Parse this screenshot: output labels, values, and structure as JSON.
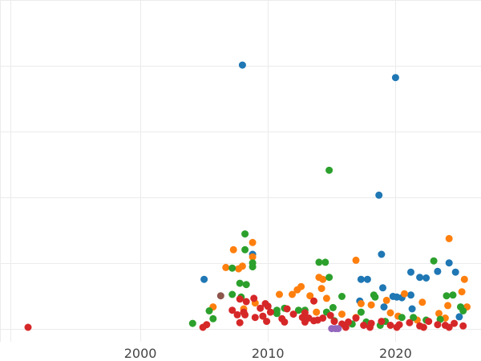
{
  "chart_data": {
    "type": "scatter",
    "title": "",
    "xlabel": "",
    "ylabel": "",
    "x_ticks": [
      {
        "value": 2000,
        "label": "2000"
      },
      {
        "value": 2010,
        "label": "2010"
      },
      {
        "value": 2020,
        "label": "2020"
      }
    ],
    "y_gridlines": [
      0.2,
      1.2,
      2.2,
      3.2,
      4.2,
      5.2
    ],
    "xlim": [
      1989,
      2026.7
    ],
    "ylim": [
      0,
      5.2
    ],
    "grid": true,
    "legend": "none",
    "colors": {
      "blue": "#1f77b4",
      "orange": "#ff7f0e",
      "green": "#2ca02c",
      "red": "#d62728",
      "purple": "#9467bd",
      "brown": "#8c564b"
    },
    "series": [
      {
        "color_key": "blue",
        "points": [
          [
            2008.0,
            4.21
          ],
          [
            2020.0,
            4.02
          ],
          [
            2018.7,
            2.23
          ],
          [
            2008.8,
            1.33
          ],
          [
            2005.0,
            0.95
          ],
          [
            2018.9,
            1.33
          ],
          [
            2021.2,
            1.06
          ],
          [
            2021.9,
            0.98
          ],
          [
            2022.4,
            0.97
          ],
          [
            2023.3,
            1.07
          ],
          [
            2024.2,
            1.2
          ],
          [
            2024.7,
            1.06
          ],
          [
            2017.3,
            0.95
          ],
          [
            2017.8,
            0.95
          ],
          [
            2019.0,
            0.82
          ],
          [
            2019.8,
            0.69
          ],
          [
            2020.1,
            0.68
          ],
          [
            2020.5,
            0.67
          ],
          [
            2021.2,
            0.71
          ],
          [
            2017.2,
            0.62
          ],
          [
            2019.1,
            0.53
          ],
          [
            2021.3,
            0.5
          ],
          [
            2025.0,
            0.38
          ]
        ]
      },
      {
        "color_key": "orange",
        "points": [
          [
            2008.8,
            1.51
          ],
          [
            2007.3,
            1.4
          ],
          [
            2008.8,
            1.29
          ],
          [
            2006.7,
            1.13
          ],
          [
            2007.7,
            1.11
          ],
          [
            2008.0,
            1.15
          ],
          [
            2016.9,
            1.24
          ],
          [
            2014.0,
            0.98
          ],
          [
            2014.3,
            0.95
          ],
          [
            2014.2,
            0.81
          ],
          [
            2024.2,
            1.57
          ],
          [
            2025.4,
            0.95
          ],
          [
            2025.2,
            0.76
          ],
          [
            2005.7,
            0.53
          ],
          [
            2010.9,
            0.72
          ],
          [
            2011.9,
            0.72
          ],
          [
            2012.3,
            0.79
          ],
          [
            2012.6,
            0.84
          ],
          [
            2013.3,
            0.7
          ],
          [
            2014.6,
            0.66
          ],
          [
            2017.3,
            0.58
          ],
          [
            2018.1,
            0.56
          ],
          [
            2019.3,
            0.63
          ],
          [
            2020.7,
            0.73
          ],
          [
            2022.1,
            0.6
          ],
          [
            2023.4,
            0.43
          ],
          [
            2024.1,
            0.55
          ],
          [
            2025.6,
            0.53
          ],
          [
            2013.8,
            0.45
          ],
          [
            2015.8,
            0.42
          ],
          [
            2016.9,
            0.37
          ],
          [
            2019.6,
            0.44
          ],
          [
            2020.2,
            0.39
          ],
          [
            2021.7,
            0.33
          ],
          [
            2023.9,
            0.36
          ],
          [
            2009.0,
            0.59
          ],
          [
            2008.1,
            0.5
          ]
        ]
      },
      {
        "color_key": "green",
        "points": [
          [
            2014.8,
            2.61
          ],
          [
            2008.2,
            1.64
          ],
          [
            2008.2,
            1.4
          ],
          [
            2008.8,
            1.2
          ],
          [
            2008.8,
            1.14
          ],
          [
            2007.2,
            1.12
          ],
          [
            2014.0,
            1.21
          ],
          [
            2014.5,
            1.21
          ],
          [
            2014.8,
            0.98
          ],
          [
            2023.0,
            1.23
          ],
          [
            2007.8,
            0.89
          ],
          [
            2008.3,
            0.87
          ],
          [
            2007.2,
            0.72
          ],
          [
            2007.9,
            0.68
          ],
          [
            2004.1,
            0.28
          ],
          [
            2005.4,
            0.47
          ],
          [
            2005.7,
            0.35
          ],
          [
            2010.0,
            0.54
          ],
          [
            2010.7,
            0.48
          ],
          [
            2010.7,
            0.43
          ],
          [
            2011.3,
            0.51
          ],
          [
            2012.4,
            0.48
          ],
          [
            2012.9,
            0.48
          ],
          [
            2014.6,
            0.45
          ],
          [
            2015.1,
            0.52
          ],
          [
            2015.8,
            0.69
          ],
          [
            2017.3,
            0.45
          ],
          [
            2018.3,
            0.71
          ],
          [
            2018.4,
            0.68
          ],
          [
            2020.5,
            0.37
          ],
          [
            2021.4,
            0.37
          ],
          [
            2023.5,
            0.34
          ],
          [
            2024.0,
            0.7
          ],
          [
            2024.5,
            0.71
          ],
          [
            2025.1,
            0.53
          ],
          [
            2025.3,
            0.47
          ],
          [
            2017.7,
            0.3
          ],
          [
            2019.2,
            0.31
          ],
          [
            2022.4,
            0.33
          ],
          [
            2015.2,
            0.32
          ],
          [
            2016.6,
            0.27
          ],
          [
            2018.8,
            0.25
          ]
        ]
      },
      {
        "color_key": "red",
        "points": [
          [
            1991.2,
            0.22
          ],
          [
            2004.9,
            0.22
          ],
          [
            2005.2,
            0.26
          ],
          [
            2007.2,
            0.48
          ],
          [
            2007.6,
            0.41
          ],
          [
            2007.8,
            0.29
          ],
          [
            2007.8,
            0.65
          ],
          [
            2008.1,
            0.45
          ],
          [
            2008.2,
            0.41
          ],
          [
            2008.3,
            0.61
          ],
          [
            2008.9,
            0.66
          ],
          [
            2009.0,
            0.37
          ],
          [
            2009.4,
            0.51
          ],
          [
            2009.8,
            0.58
          ],
          [
            2009.6,
            0.39
          ],
          [
            2009.9,
            0.31
          ],
          [
            2010.0,
            0.54
          ],
          [
            2011.1,
            0.35
          ],
          [
            2011.3,
            0.3
          ],
          [
            2011.5,
            0.5
          ],
          [
            2012.0,
            0.42
          ],
          [
            2012.7,
            0.37
          ],
          [
            2012.9,
            0.3
          ],
          [
            2013.2,
            0.36
          ],
          [
            2013.6,
            0.32
          ],
          [
            2013.9,
            0.33
          ],
          [
            2014.3,
            0.36
          ],
          [
            2014.9,
            0.4
          ],
          [
            2015.2,
            0.31
          ],
          [
            2015.8,
            0.27
          ],
          [
            2016.3,
            0.3
          ],
          [
            2016.9,
            0.36
          ],
          [
            2017.5,
            0.25
          ],
          [
            2018.1,
            0.28
          ],
          [
            2018.9,
            0.31
          ],
          [
            2019.6,
            0.25
          ],
          [
            2020.3,
            0.26
          ],
          [
            2021.1,
            0.29
          ],
          [
            2021.9,
            0.24
          ],
          [
            2022.6,
            0.31
          ],
          [
            2023.3,
            0.26
          ],
          [
            2023.9,
            0.25
          ],
          [
            2024.6,
            0.28
          ],
          [
            2025.3,
            0.24
          ],
          [
            2013.6,
            0.62
          ],
          [
            2016.1,
            0.22
          ],
          [
            2018.0,
            0.22
          ],
          [
            2020.1,
            0.22
          ],
          [
            2022.2,
            0.22
          ],
          [
            2024.2,
            0.22
          ],
          [
            2010.2,
            0.45
          ],
          [
            2012.9,
            0.44
          ]
        ]
      },
      {
        "color_key": "purple",
        "points": [
          [
            2015.0,
            0.2
          ],
          [
            2015.3,
            0.2
          ],
          [
            2015.5,
            0.2
          ]
        ]
      },
      {
        "color_key": "brown",
        "points": [
          [
            2006.3,
            0.7
          ]
        ]
      }
    ]
  }
}
